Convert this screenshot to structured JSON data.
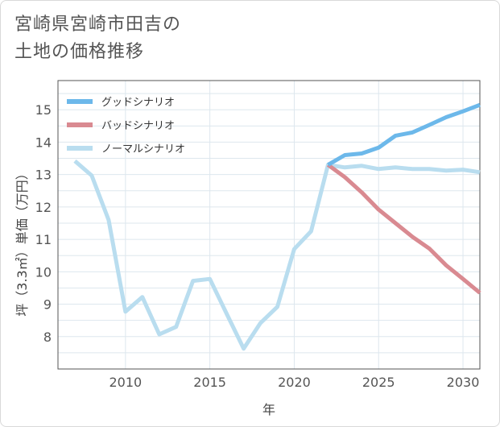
{
  "chart_data": {
    "type": "line",
    "title_lines": [
      "宮崎県宮崎市田吉の",
      "土地の価格推移"
    ],
    "xlabel": "年",
    "ylabel": "坪（3.3㎡）単価（万円）",
    "xlim": [
      2006,
      2031
    ],
    "ylim": [
      7.0,
      15.9
    ],
    "x_ticks": [
      2010,
      2015,
      2020,
      2025,
      2030
    ],
    "y_ticks": [
      8,
      9,
      10,
      11,
      12,
      13,
      14,
      15
    ],
    "grid": true,
    "legend_position": "top-left",
    "series": [
      {
        "name": "グッドシナリオ",
        "color": "#6cb8ea",
        "x": [
          2022,
          2023,
          2024,
          2025,
          2026,
          2027,
          2028,
          2029,
          2030,
          2031
        ],
        "values": [
          13.3,
          13.6,
          13.65,
          13.83,
          14.2,
          14.3,
          14.53,
          14.77,
          14.95,
          15.15
        ]
      },
      {
        "name": "バッドシナリオ",
        "color": "#d98a91",
        "x": [
          2022,
          2023,
          2024,
          2025,
          2026,
          2027,
          2028,
          2029,
          2030,
          2031
        ],
        "values": [
          13.3,
          12.92,
          12.45,
          11.92,
          11.5,
          11.08,
          10.72,
          10.2,
          9.78,
          9.35
        ]
      },
      {
        "name": "ノーマルシナリオ",
        "color": "#b9ddef",
        "x": [
          2007,
          2008,
          2009,
          2010,
          2011,
          2012,
          2013,
          2014,
          2015,
          2016,
          2017,
          2018,
          2019,
          2020,
          2021,
          2022,
          2023,
          2024,
          2025,
          2026,
          2027,
          2028,
          2029,
          2030,
          2031
        ],
        "values": [
          13.42,
          12.97,
          11.6,
          8.77,
          9.22,
          8.07,
          8.3,
          9.72,
          9.78,
          8.7,
          7.63,
          8.42,
          8.92,
          10.7,
          11.25,
          13.3,
          13.22,
          13.27,
          13.17,
          13.22,
          13.17,
          13.17,
          13.12,
          13.15,
          13.07
        ]
      }
    ]
  }
}
